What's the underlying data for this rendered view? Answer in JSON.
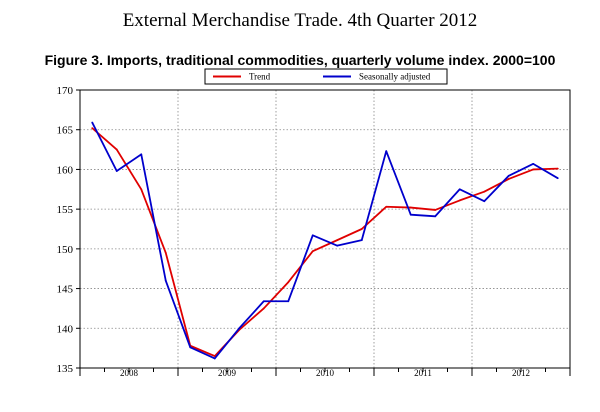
{
  "header": {
    "title": "External Merchandise Trade. 4th Quarter 2012",
    "figure_title": "Figure 3. Imports, traditional commodities, quarterly volume index. 2000=100"
  },
  "chart_data": {
    "type": "line",
    "x": [
      "2008Q1",
      "2008Q2",
      "2008Q3",
      "2008Q4",
      "2009Q1",
      "2009Q2",
      "2009Q3",
      "2009Q4",
      "2010Q1",
      "2010Q2",
      "2010Q3",
      "2010Q4",
      "2011Q1",
      "2011Q2",
      "2011Q3",
      "2011Q4",
      "2012Q1",
      "2012Q2",
      "2012Q3",
      "2012Q4"
    ],
    "xtick_labels": [
      "2008",
      "2009",
      "2010",
      "2011",
      "2012"
    ],
    "ylim": [
      135,
      170
    ],
    "yticks": [
      135,
      140,
      145,
      150,
      155,
      160,
      165,
      170
    ],
    "grid": true,
    "legend_position": "top",
    "series": [
      {
        "name": "Trend",
        "color": "#e00000",
        "values": [
          165.2,
          162.5,
          157.5,
          149.5,
          137.8,
          136.5,
          139.8,
          142.5,
          145.8,
          149.7,
          151.1,
          152.5,
          155.3,
          155.2,
          154.9,
          156.1,
          157.2,
          158.8,
          160.0,
          160.1
        ]
      },
      {
        "name": "Seasonally adjusted",
        "color": "#0000cc",
        "values": [
          165.9,
          159.8,
          161.9,
          146.0,
          137.6,
          136.2,
          140.0,
          143.4,
          143.4,
          151.7,
          150.4,
          151.1,
          162.3,
          154.3,
          154.1,
          157.5,
          156.0,
          159.2,
          160.7,
          158.9
        ]
      }
    ]
  }
}
